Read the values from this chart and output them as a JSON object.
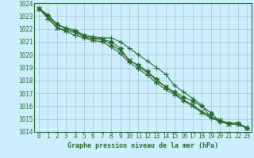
{
  "title": "Graphe pression niveau de la mer (hPa)",
  "xlim": [
    -0.5,
    23.5
  ],
  "ylim": [
    1014,
    1024
  ],
  "xticks": [
    0,
    1,
    2,
    3,
    4,
    5,
    6,
    7,
    8,
    9,
    10,
    11,
    12,
    13,
    14,
    15,
    16,
    17,
    18,
    19,
    20,
    21,
    22,
    23
  ],
  "yticks": [
    1014,
    1015,
    1016,
    1017,
    1018,
    1019,
    1020,
    1021,
    1022,
    1023,
    1024
  ],
  "background_color": "#cceeff",
  "grid_color": "#aacccc",
  "line_color": "#2d6b2d",
  "marker_color": "#2d6b2d",
  "series": [
    [
      1023.6,
      1023.1,
      1022.4,
      1022.0,
      1021.8,
      1021.5,
      1021.3,
      1021.2,
      1021.0,
      1020.5,
      1019.5,
      1019.2,
      1018.7,
      1018.1,
      1017.5,
      1017.1,
      1016.7,
      1016.4,
      1016.0,
      1015.5,
      1014.8,
      1014.7,
      1014.7,
      1014.3
    ],
    [
      1023.6,
      1022.8,
      1022.1,
      1021.8,
      1021.5,
      1021.3,
      1021.1,
      1021.0,
      1020.6,
      1020.1,
      1019.4,
      1018.9,
      1018.4,
      1017.8,
      1017.3,
      1016.9,
      1016.4,
      1016.0,
      1015.5,
      1015.1,
      1014.8,
      1014.6,
      1014.6,
      1014.3
    ],
    [
      1023.6,
      1022.9,
      1022.1,
      1021.9,
      1021.7,
      1021.4,
      1021.2,
      1021.2,
      1020.8,
      1020.3,
      1019.6,
      1019.1,
      1018.6,
      1018.0,
      1017.5,
      1017.0,
      1016.5,
      1016.1,
      1015.6,
      1015.2,
      1014.9,
      1014.6,
      1014.6,
      1014.3
    ],
    [
      1023.6,
      1023.0,
      1022.3,
      1022.1,
      1021.9,
      1021.5,
      1021.4,
      1021.3,
      1021.3,
      1021.0,
      1020.5,
      1020.0,
      1019.5,
      1019.0,
      1018.5,
      1017.6,
      1017.1,
      1016.6,
      1016.1,
      1015.1,
      1014.9,
      1014.7,
      1014.7,
      1014.3
    ]
  ],
  "markers": [
    "D",
    "+",
    "x",
    "+"
  ],
  "marker_sizes": [
    2.5,
    4.5,
    4.5,
    4.5
  ],
  "linewidths": [
    0.8,
    0.8,
    0.8,
    0.8
  ]
}
